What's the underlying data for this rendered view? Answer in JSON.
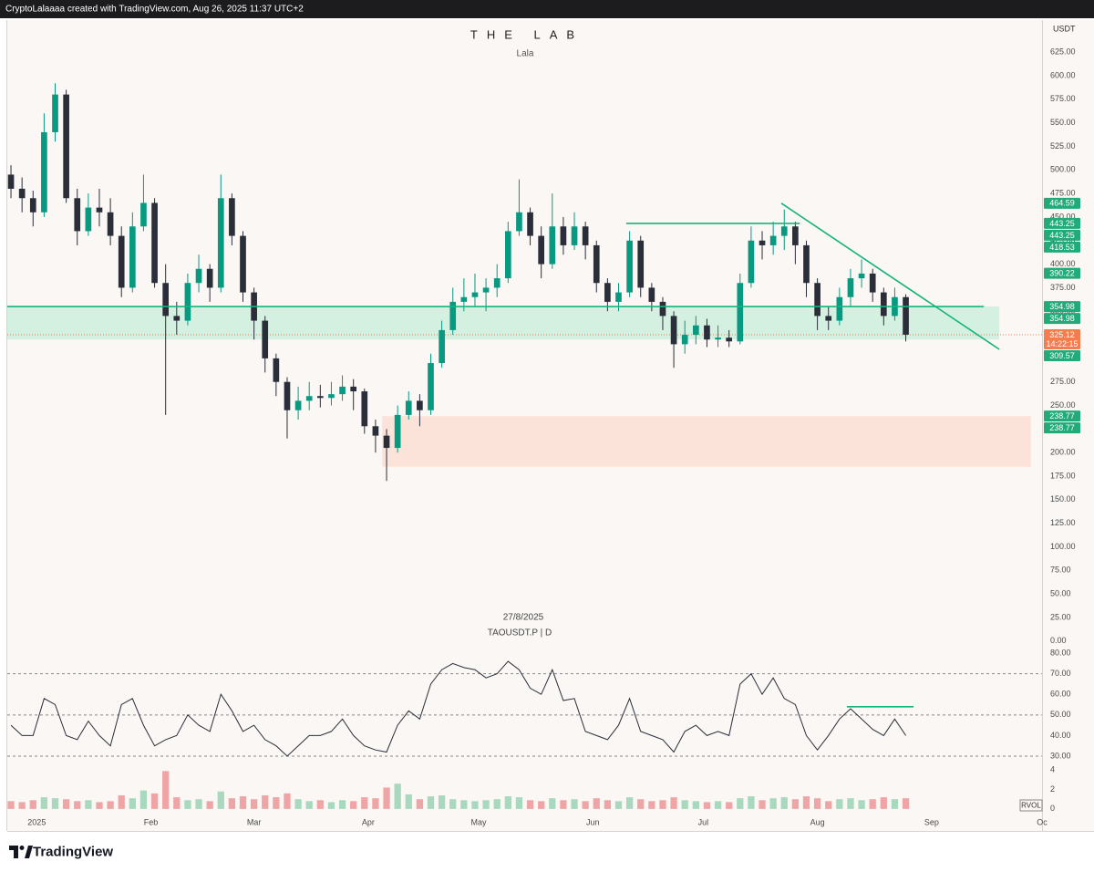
{
  "header": {
    "text": "CryptoLalaaaa created with TradingView.com, Aug 26, 2025 11:37 UTC+2"
  },
  "footer": {
    "brand": "TradingView"
  },
  "chart_data": [
    {
      "type": "candlestick",
      "title": "THE LAB",
      "subtitle": "Lala",
      "currency": "USDT",
      "annotation": "27/8/2025",
      "symbol": "TAOUSDT.P | D",
      "x": [
        -7,
        -4,
        -1,
        2,
        5,
        8,
        11,
        14,
        17,
        20,
        23,
        26,
        29,
        32,
        35,
        38,
        41,
        44,
        47,
        50,
        53,
        56,
        59,
        62,
        65,
        68,
        71,
        74,
        77,
        80,
        83,
        86,
        89,
        92,
        95,
        98,
        101,
        104,
        107,
        110,
        113,
        116,
        119,
        122,
        125,
        128,
        131,
        134,
        137,
        140,
        143,
        146,
        149,
        152,
        155,
        158,
        161,
        164,
        167,
        170,
        173,
        176,
        179,
        182,
        185,
        188,
        191,
        194,
        197,
        200,
        203,
        206,
        209,
        212,
        215,
        218,
        221,
        224,
        227,
        230,
        233,
        236
      ],
      "open": [
        495,
        480,
        470,
        455,
        540,
        580,
        470,
        435,
        460,
        455,
        430,
        375,
        440,
        465,
        380,
        345,
        340,
        380,
        395,
        375,
        470,
        430,
        370,
        340,
        300,
        275,
        245,
        255,
        260,
        258,
        262,
        270,
        265,
        228,
        218,
        205,
        240,
        255,
        245,
        295,
        330,
        360,
        365,
        370,
        375,
        385,
        435,
        455,
        430,
        400,
        440,
        420,
        440,
        420,
        380,
        360,
        370,
        425,
        375,
        360,
        345,
        315,
        325,
        335,
        320,
        322,
        318,
        380,
        425,
        420,
        430,
        440,
        420,
        380,
        345,
        340,
        365,
        385,
        390,
        370,
        345,
        365
      ],
      "high": [
        505,
        492,
        478,
        560,
        592,
        585,
        480,
        475,
        480,
        470,
        440,
        455,
        495,
        470,
        400,
        360,
        390,
        410,
        400,
        495,
        475,
        435,
        375,
        345,
        305,
        280,
        270,
        275,
        272,
        275,
        282,
        278,
        268,
        235,
        225,
        250,
        265,
        262,
        305,
        340,
        375,
        385,
        390,
        385,
        400,
        445,
        490,
        460,
        440,
        475,
        450,
        455,
        445,
        425,
        385,
        380,
        435,
        430,
        380,
        365,
        350,
        340,
        345,
        342,
        335,
        330,
        390,
        440,
        435,
        445,
        458,
        445,
        425,
        385,
        355,
        375,
        395,
        405,
        395,
        375,
        375,
        368
      ],
      "low": [
        470,
        455,
        440,
        450,
        530,
        465,
        420,
        430,
        440,
        420,
        365,
        370,
        435,
        375,
        240,
        325,
        335,
        370,
        360,
        370,
        420,
        360,
        320,
        285,
        260,
        215,
        235,
        245,
        248,
        250,
        255,
        245,
        220,
        200,
        170,
        200,
        235,
        228,
        240,
        290,
        325,
        350,
        355,
        350,
        365,
        380,
        430,
        420,
        385,
        395,
        410,
        415,
        405,
        370,
        350,
        350,
        365,
        365,
        350,
        330,
        290,
        305,
        315,
        312,
        312,
        312,
        315,
        375,
        405,
        410,
        415,
        400,
        365,
        330,
        330,
        335,
        355,
        375,
        360,
        335,
        340,
        318
      ],
      "close": [
        480,
        470,
        455,
        540,
        580,
        470,
        435,
        460,
        455,
        430,
        375,
        440,
        465,
        380,
        345,
        340,
        380,
        395,
        375,
        470,
        430,
        370,
        340,
        300,
        275,
        245,
        255,
        260,
        258,
        262,
        270,
        265,
        228,
        218,
        205,
        240,
        255,
        245,
        295,
        330,
        360,
        365,
        370,
        375,
        385,
        435,
        455,
        430,
        400,
        440,
        420,
        440,
        420,
        380,
        360,
        370,
        425,
        375,
        360,
        345,
        315,
        325,
        335,
        320,
        322,
        318,
        380,
        425,
        420,
        430,
        440,
        420,
        380,
        345,
        340,
        365,
        385,
        390,
        370,
        345,
        365,
        325.12
      ],
      "up_color": "#089981",
      "down_color": "#2a2e39",
      "xlim": [
        -8,
        273
      ],
      "ylim": [
        -5,
        659
      ],
      "xticks": [
        {
          "value": 0,
          "label": "2025"
        },
        {
          "value": 31,
          "label": "Feb"
        },
        {
          "value": 59,
          "label": "Mar"
        },
        {
          "value": 90,
          "label": "Apr"
        },
        {
          "value": 120,
          "label": "May"
        },
        {
          "value": 151,
          "label": "Jun"
        },
        {
          "value": 181,
          "label": "Jul"
        },
        {
          "value": 212,
          "label": "Aug"
        },
        {
          "value": 243,
          "label": "Sep"
        },
        {
          "value": 273,
          "label": "Oc"
        }
      ],
      "yticks": [
        {
          "value": 0,
          "label": "0.00"
        },
        {
          "value": 25,
          "label": "25.00"
        },
        {
          "value": 50,
          "label": "50.00"
        },
        {
          "value": 75,
          "label": "75.00"
        },
        {
          "value": 100,
          "label": "100.00"
        },
        {
          "value": 125,
          "label": "125.00"
        },
        {
          "value": 150,
          "label": "150.00"
        },
        {
          "value": 175,
          "label": "175.00"
        },
        {
          "value": 200,
          "label": "200.00"
        },
        {
          "value": 225,
          "label": "225.00"
        },
        {
          "value": 250,
          "label": "250.00"
        },
        {
          "value": 275,
          "label": "275.00"
        },
        {
          "value": 300,
          "label": "300.00"
        },
        {
          "value": 325,
          "label": "325.00"
        },
        {
          "value": 350,
          "label": "350.00"
        },
        {
          "value": 375,
          "label": "375.00"
        },
        {
          "value": 400,
          "label": "400.00"
        },
        {
          "value": 425,
          "label": "425.00"
        },
        {
          "value": 450,
          "label": "450.00"
        },
        {
          "value": 475,
          "label": "475.00"
        },
        {
          "value": 500,
          "label": "500.00"
        },
        {
          "value": 525,
          "label": "525.00"
        },
        {
          "value": 550,
          "label": "550.00"
        },
        {
          "value": 575,
          "label": "575.00"
        },
        {
          "value": 600,
          "label": "600.00"
        },
        {
          "value": 625,
          "label": "625.00"
        }
      ],
      "price_labels": [
        {
          "value": 464.59,
          "color": "#22ab7a"
        },
        {
          "value": 443.25,
          "color": "#22ab7a"
        },
        {
          "value": 443.25,
          "color": "#22ab7a"
        },
        {
          "value": 418.53,
          "color": "#22ab7a"
        },
        {
          "value": 390.22,
          "color": "#22ab7a"
        },
        {
          "value": 354.98,
          "color": "#22ab7a"
        },
        {
          "value": 354.98,
          "color": "#22ab7a"
        },
        {
          "value": 309.57,
          "color": "#22ab7a"
        },
        {
          "value": 238.77,
          "color": "#22ab7a"
        },
        {
          "value": 238.77,
          "color": "#22ab7a"
        }
      ],
      "current_price": {
        "value": 325.12,
        "countdown": "14:22:15",
        "color": "#f57c4f"
      },
      "zones": [
        {
          "x": [
            -8,
            261.4
          ],
          "y": [
            354.98,
            320
          ],
          "color": "#cdeedd"
        },
        {
          "x": [
            93.8,
            270
          ],
          "y": [
            238.77,
            185
          ],
          "color": "#fbdfd5"
        }
      ],
      "lines": [
        {
          "x": [
            -8,
            257.2
          ],
          "y": [
            354.98,
            354.98
          ]
        },
        {
          "x": [
            160.1,
            207.2
          ],
          "y": [
            443.25,
            443.25
          ]
        },
        {
          "x": [
            202.2,
            261.4
          ],
          "y": [
            464.59,
            309.57
          ]
        }
      ],
      "line_color": "#14b37d"
    },
    {
      "type": "line",
      "x": [
        -7,
        -4,
        -1,
        2,
        5,
        8,
        11,
        14,
        17,
        20,
        23,
        26,
        29,
        32,
        35,
        38,
        41,
        44,
        47,
        50,
        53,
        56,
        59,
        62,
        65,
        68,
        71,
        74,
        77,
        80,
        83,
        86,
        89,
        92,
        95,
        98,
        101,
        104,
        107,
        110,
        113,
        116,
        119,
        122,
        125,
        128,
        131,
        134,
        137,
        140,
        143,
        146,
        149,
        152,
        155,
        158,
        161,
        164,
        167,
        170,
        173,
        176,
        179,
        182,
        185,
        188,
        191,
        194,
        197,
        200,
        203,
        206,
        209,
        212,
        215,
        218,
        221,
        224,
        227,
        230,
        233,
        236
      ],
      "values": [
        45,
        40,
        40,
        58,
        55,
        40,
        38,
        47,
        40,
        35,
        55,
        58,
        45,
        35,
        38,
        40,
        50,
        45,
        42,
        60,
        52,
        42,
        45,
        38,
        35,
        30,
        35,
        40,
        40,
        42,
        48,
        40,
        35,
        33,
        32,
        45,
        52,
        48,
        65,
        72,
        75,
        73,
        72,
        68,
        70,
        76,
        72,
        63,
        60,
        72,
        57,
        58,
        42,
        40,
        38,
        45,
        58,
        42,
        40,
        38,
        32,
        42,
        45,
        40,
        42,
        40,
        65,
        70,
        60,
        68,
        58,
        55,
        40,
        33,
        40,
        48,
        53,
        48,
        43,
        40,
        48,
        40
      ],
      "color": "#2a2e39",
      "xlim": [
        -8,
        273
      ],
      "ylim": [
        26,
        82.7
      ],
      "yticks": [
        {
          "value": 30,
          "label": "30.00"
        },
        {
          "value": 40,
          "label": "40.00"
        },
        {
          "value": 50,
          "label": "50.00"
        },
        {
          "value": 60,
          "label": "60.00"
        },
        {
          "value": 70,
          "label": "70.00"
        },
        {
          "value": 80,
          "label": "80.00"
        }
      ],
      "levels": [
        70,
        50,
        30
      ],
      "lines": [
        {
          "x": [
            220,
            238.1
          ],
          "y": [
            54,
            54
          ]
        }
      ],
      "line_color": "#14b37d"
    },
    {
      "type": "bar",
      "label": "RVOL",
      "x": [
        -7,
        -4,
        -1,
        2,
        5,
        8,
        11,
        14,
        17,
        20,
        23,
        26,
        29,
        32,
        35,
        38,
        41,
        44,
        47,
        50,
        53,
        56,
        59,
        62,
        65,
        68,
        71,
        74,
        77,
        80,
        83,
        86,
        89,
        92,
        95,
        98,
        101,
        104,
        107,
        110,
        113,
        116,
        119,
        122,
        125,
        128,
        131,
        134,
        137,
        140,
        143,
        146,
        149,
        152,
        155,
        158,
        161,
        164,
        167,
        170,
        173,
        176,
        179,
        182,
        185,
        188,
        191,
        194,
        197,
        200,
        203,
        206,
        209,
        212,
        215,
        218,
        221,
        224,
        227,
        230,
        233,
        236
      ],
      "values": [
        0.8,
        0.7,
        0.9,
        1.2,
        1.1,
        1.0,
        0.8,
        0.9,
        0.7,
        0.8,
        1.4,
        1.1,
        1.9,
        1.6,
        3.9,
        1.2,
        0.9,
        1.0,
        0.8,
        1.8,
        1.1,
        1.3,
        1.0,
        1.4,
        1.2,
        1.6,
        1.0,
        0.8,
        0.9,
        0.7,
        0.9,
        0.8,
        1.2,
        1.1,
        2.2,
        2.6,
        1.5,
        1.0,
        1.3,
        1.4,
        1.0,
        0.9,
        0.8,
        0.9,
        1.0,
        1.3,
        1.2,
        0.9,
        0.8,
        1.1,
        0.9,
        1.0,
        0.8,
        1.1,
        0.9,
        0.8,
        1.2,
        1.0,
        0.8,
        0.9,
        1.2,
        0.9,
        0.8,
        0.7,
        0.8,
        0.7,
        1.1,
        1.3,
        0.9,
        1.1,
        1.2,
        1.0,
        1.3,
        1.1,
        0.8,
        1.0,
        1.1,
        0.9,
        1.0,
        1.2,
        1.0,
        1.1
      ],
      "up_color": "#a8d8bd",
      "down_color": "#efa5a5",
      "xlim": [
        -8,
        273
      ],
      "ylim": [
        -0.2,
        4.4
      ],
      "yticks": [
        0,
        2,
        4
      ]
    }
  ]
}
